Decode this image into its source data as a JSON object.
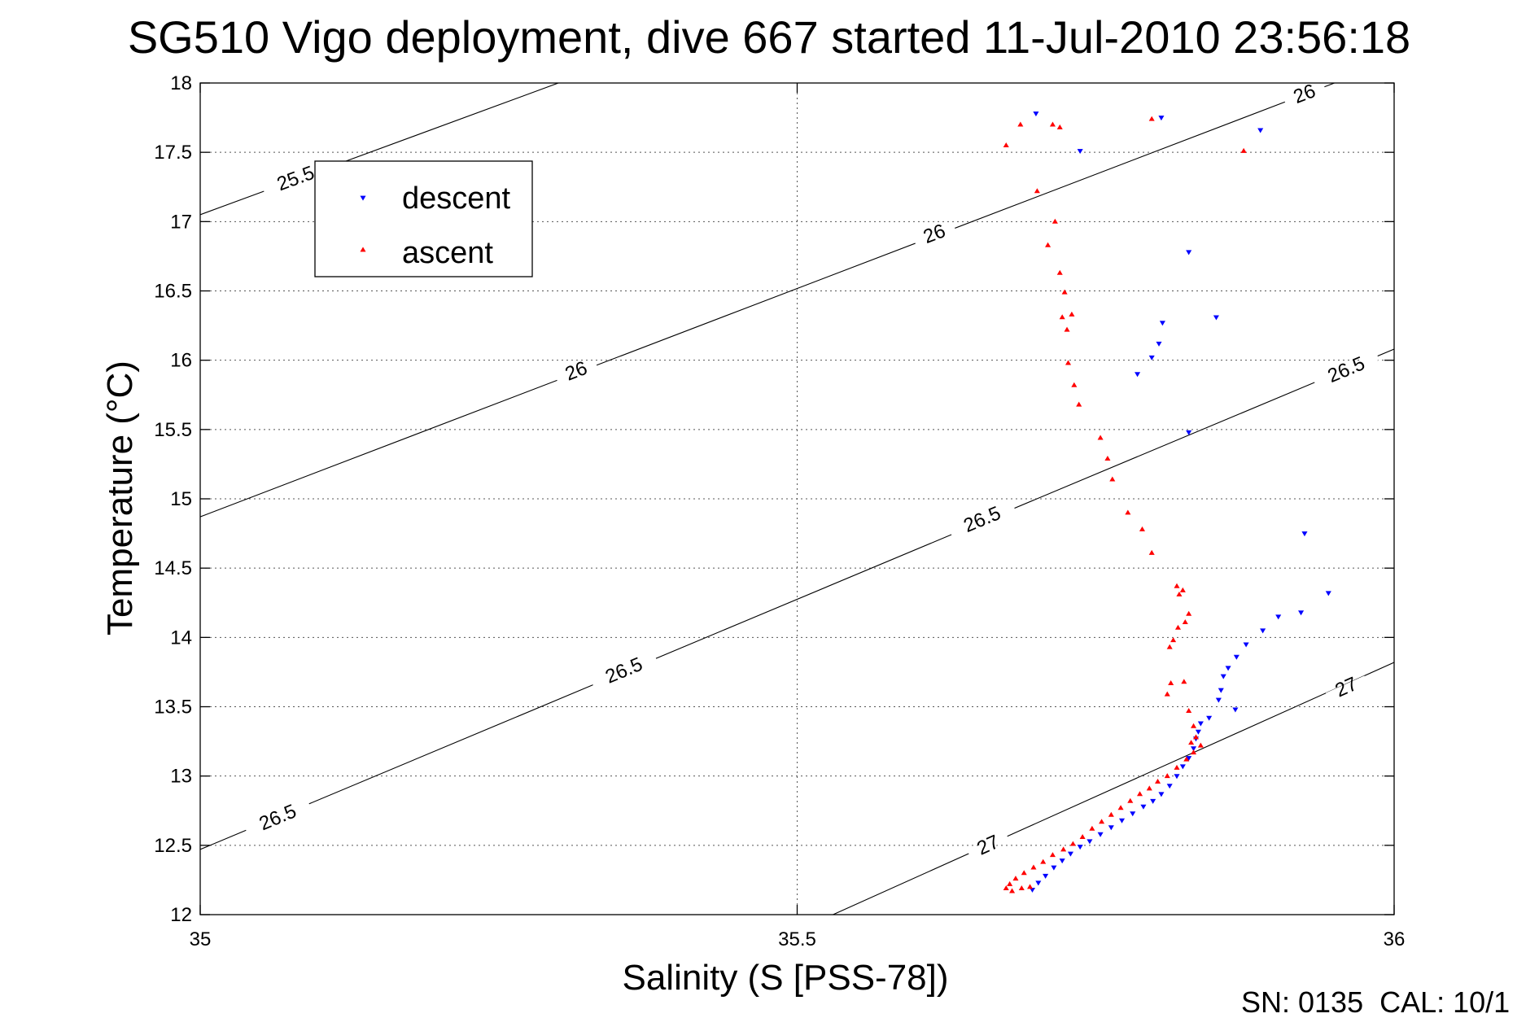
{
  "chart_data": {
    "type": "scatter",
    "title": "SG510 Vigo deployment, dive 667 started 11-Jul-2010 23:56:18",
    "xlabel": "Salinity (S [PSS-78])",
    "ylabel": "Temperature (°C)",
    "xlim": [
      35,
      36
    ],
    "ylim": [
      12,
      18
    ],
    "x_ticks": [
      35,
      35.5,
      36
    ],
    "x_tick_labels": [
      "35",
      "35.5",
      "36"
    ],
    "y_ticks": [
      12,
      12.5,
      13,
      13.5,
      14,
      14.5,
      15,
      15.5,
      16,
      16.5,
      17,
      17.5,
      18
    ],
    "y_tick_labels": [
      "12",
      "12.5",
      "13",
      "13.5",
      "14",
      "14.5",
      "15",
      "15.5",
      "16",
      "16.5",
      "17",
      "17.5",
      "18"
    ],
    "grid": true,
    "legend_position": "top-left",
    "footer_text": "SN: 0135  CAL: 10/1",
    "series": [
      {
        "name": "descent",
        "marker": "triangle-down",
        "color": "#0000ff",
        "points": [
          [
            35.7,
            17.78
          ],
          [
            35.805,
            17.75
          ],
          [
            35.737,
            17.51
          ],
          [
            35.888,
            17.66
          ],
          [
            35.828,
            16.78
          ],
          [
            35.851,
            16.31
          ],
          [
            35.806,
            16.27
          ],
          [
            35.803,
            16.12
          ],
          [
            35.797,
            16.02
          ],
          [
            35.785,
            15.9
          ],
          [
            35.828,
            15.48
          ],
          [
            35.945,
            14.32
          ],
          [
            35.925,
            14.75
          ],
          [
            35.922,
            14.18
          ],
          [
            35.903,
            14.15
          ],
          [
            35.89,
            14.05
          ],
          [
            35.876,
            13.95
          ],
          [
            35.868,
            13.86
          ],
          [
            35.861,
            13.78
          ],
          [
            35.857,
            13.72
          ],
          [
            35.855,
            13.62
          ],
          [
            35.853,
            13.55
          ],
          [
            35.867,
            13.48
          ],
          [
            35.845,
            13.42
          ],
          [
            35.838,
            13.38
          ],
          [
            35.836,
            13.32
          ],
          [
            35.834,
            13.27
          ],
          [
            35.832,
            13.2
          ],
          [
            35.828,
            13.13
          ],
          [
            35.823,
            13.07
          ],
          [
            35.818,
            13.0
          ],
          [
            35.812,
            12.93
          ],
          [
            35.805,
            12.87
          ],
          [
            35.798,
            12.82
          ],
          [
            35.79,
            12.78
          ],
          [
            35.781,
            12.73
          ],
          [
            35.772,
            12.68
          ],
          [
            35.763,
            12.63
          ],
          [
            35.754,
            12.58
          ],
          [
            35.745,
            12.53
          ],
          [
            35.737,
            12.49
          ],
          [
            35.729,
            12.44
          ],
          [
            35.722,
            12.39
          ],
          [
            35.715,
            12.34
          ],
          [
            35.708,
            12.28
          ],
          [
            35.702,
            12.23
          ],
          [
            35.697,
            12.18
          ]
        ]
      },
      {
        "name": "ascent",
        "marker": "triangle-up",
        "color": "#ff0000",
        "points": [
          [
            35.675,
            17.55
          ],
          [
            35.687,
            17.7
          ],
          [
            35.714,
            17.7
          ],
          [
            35.72,
            17.68
          ],
          [
            35.797,
            17.74
          ],
          [
            35.874,
            17.51
          ],
          [
            35.701,
            17.22
          ],
          [
            35.716,
            17.0
          ],
          [
            35.71,
            16.83
          ],
          [
            35.72,
            16.63
          ],
          [
            35.724,
            16.49
          ],
          [
            35.73,
            16.33
          ],
          [
            35.722,
            16.31
          ],
          [
            35.726,
            16.22
          ],
          [
            35.727,
            15.98
          ],
          [
            35.732,
            15.82
          ],
          [
            35.736,
            15.68
          ],
          [
            35.754,
            15.44
          ],
          [
            35.76,
            15.29
          ],
          [
            35.764,
            15.14
          ],
          [
            35.777,
            14.9
          ],
          [
            35.789,
            14.78
          ],
          [
            35.797,
            14.61
          ],
          [
            35.818,
            14.37
          ],
          [
            35.823,
            14.34
          ],
          [
            35.82,
            14.31
          ],
          [
            35.828,
            14.17
          ],
          [
            35.825,
            14.11
          ],
          [
            35.819,
            14.07
          ],
          [
            35.815,
            13.98
          ],
          [
            35.812,
            13.93
          ],
          [
            35.824,
            13.68
          ],
          [
            35.813,
            13.67
          ],
          [
            35.81,
            13.59
          ],
          [
            35.828,
            13.47
          ],
          [
            35.832,
            13.36
          ],
          [
            35.834,
            13.28
          ],
          [
            35.83,
            13.24
          ],
          [
            35.838,
            13.22
          ],
          [
            35.832,
            13.17
          ],
          [
            35.826,
            13.12
          ],
          [
            35.818,
            13.06
          ],
          [
            35.81,
            13.0
          ],
          [
            35.802,
            12.96
          ],
          [
            35.795,
            12.91
          ],
          [
            35.787,
            12.87
          ],
          [
            35.779,
            12.82
          ],
          [
            35.771,
            12.77
          ],
          [
            35.763,
            12.72
          ],
          [
            35.755,
            12.67
          ],
          [
            35.747,
            12.62
          ],
          [
            35.739,
            12.56
          ],
          [
            35.731,
            12.51
          ],
          [
            35.723,
            12.47
          ],
          [
            35.714,
            12.43
          ],
          [
            35.706,
            12.38
          ],
          [
            35.698,
            12.34
          ],
          [
            35.69,
            12.3
          ],
          [
            35.683,
            12.26
          ],
          [
            35.678,
            12.22
          ],
          [
            35.675,
            12.19
          ],
          [
            35.68,
            12.17
          ],
          [
            35.688,
            12.19
          ],
          [
            35.695,
            12.2
          ]
        ]
      }
    ],
    "contours": [
      {
        "level": "25.5",
        "lines": [
          [
            [
              35.0,
              17.05
            ],
            [
              35.3,
              18.0
            ]
          ]
        ],
        "labels": [
          {
            "text": "25.5",
            "at": [
              35.08,
              17.31
            ]
          }
        ]
      },
      {
        "level": "26",
        "lines": [
          [
            [
              35.0,
              14.87
            ],
            [
              35.95,
              18.0
            ]
          ]
        ],
        "labels": [
          {
            "text": "26",
            "at": [
              35.315,
              15.92
            ]
          },
          {
            "text": "26",
            "at": [
              35.615,
              16.91
            ]
          },
          {
            "text": "26",
            "at": [
              35.925,
              17.92
            ]
          }
        ]
      },
      {
        "level": "26.5",
        "lines": [
          [
            [
              35.0,
              12.47
            ],
            [
              36.0,
              16.08
            ]
          ]
        ],
        "labels": [
          {
            "text": "26.5",
            "at": [
              35.065,
              12.7
            ]
          },
          {
            "text": "26.5",
            "at": [
              35.355,
              13.76
            ]
          },
          {
            "text": "26.5",
            "at": [
              35.655,
              14.85
            ]
          },
          {
            "text": "26.5",
            "at": [
              35.96,
              15.93
            ]
          }
        ]
      },
      {
        "level": "27",
        "lines": [
          [
            [
              35.53,
              12.0
            ],
            [
              36.0,
              13.82
            ]
          ]
        ],
        "labels": [
          {
            "text": "27",
            "at": [
              35.66,
              12.5
            ]
          },
          {
            "text": "27",
            "at": [
              35.96,
              13.64
            ]
          }
        ]
      }
    ]
  }
}
